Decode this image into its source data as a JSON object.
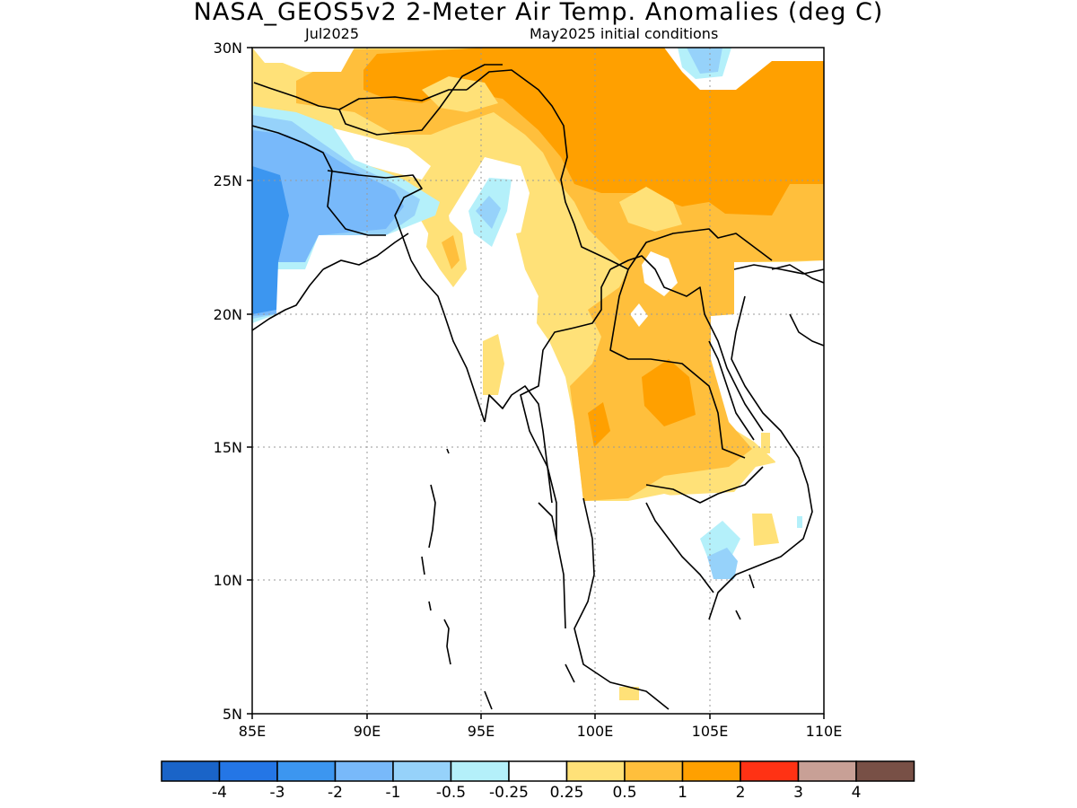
{
  "title": "NASA_GEOS5v2 2-Meter Air Temp. Anomalies (deg C)",
  "subtitle_left": "Jul2025",
  "subtitle_right": "May2025 initial conditions",
  "axes": {
    "lat_ticks": [
      "30N",
      "25N",
      "20N",
      "15N",
      "10N",
      "5N"
    ],
    "lon_ticks": [
      "85E",
      "90E",
      "95E",
      "100E",
      "105E",
      "110E"
    ]
  },
  "colorbar": {
    "colors": [
      "#1a64c8",
      "#2476e6",
      "#3c96f0",
      "#78b9fa",
      "#96d2fa",
      "#b4f0fa",
      "#ffffff",
      "#ffe178",
      "#ffbf3c",
      "#ffa000",
      "#ff3214",
      "#c8a096",
      "#785046"
    ],
    "labels": [
      "-4",
      "-3",
      "-2",
      "-1",
      "-0.5",
      "-0.25",
      "0.25",
      "0.5",
      "1",
      "2",
      "3",
      "4"
    ]
  },
  "palette": {
    "anomaly_pos_05": "#ffe178",
    "anomaly_pos_1": "#ffbf3c",
    "anomaly_pos_2": "#ffa000",
    "anomaly_neg_025": "#b4f0fa",
    "anomaly_neg_05": "#96d2fa",
    "anomaly_neg_1": "#78b9fa",
    "anomaly_neg_2": "#3c96f0"
  }
}
